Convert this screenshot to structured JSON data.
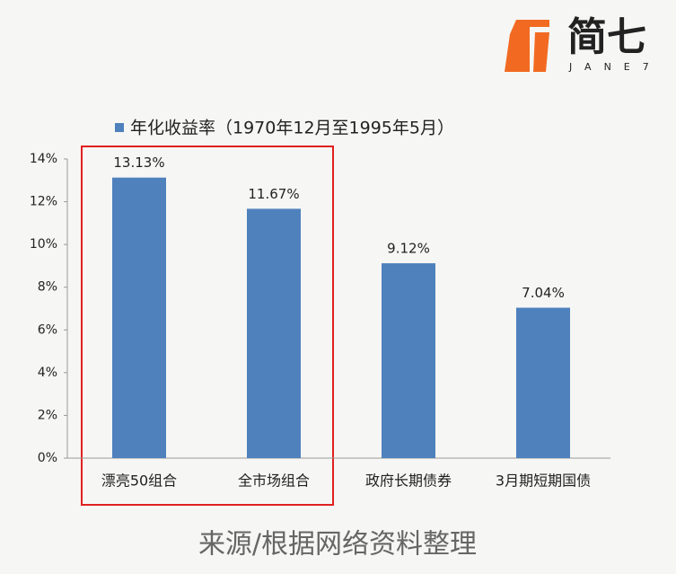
{
  "chart_data": {
    "type": "bar",
    "logo": "简七",
    "logo_subtitle": "JANE7",
    "categories": [
      "漂亮50组合",
      "全市场组合",
      "政府长期债券",
      "3月期短期国债"
    ],
    "series": [
      {
        "name": "年化收益率（1970年12月至1995年5月）",
        "color": "#4f81bd",
        "values": [
          13.13,
          11.67,
          9.12,
          7.04
        ],
        "value_labels": [
          "13.13%",
          "11.67%",
          "9.12%",
          "7.04%"
        ]
      }
    ],
    "ylim": [
      0,
      14
    ],
    "yticks": [
      {
        "value": 0,
        "label": "0%"
      },
      {
        "value": 2,
        "label": "2%"
      },
      {
        "value": 4,
        "label": "4%"
      },
      {
        "value": 6,
        "label": "6%"
      },
      {
        "value": 8,
        "label": "8%"
      },
      {
        "value": 10,
        "label": "10%"
      },
      {
        "value": 12,
        "label": "12%"
      },
      {
        "value": 14,
        "label": "14%"
      }
    ],
    "grid": false,
    "source": "来源/根据网络资料整理"
  }
}
